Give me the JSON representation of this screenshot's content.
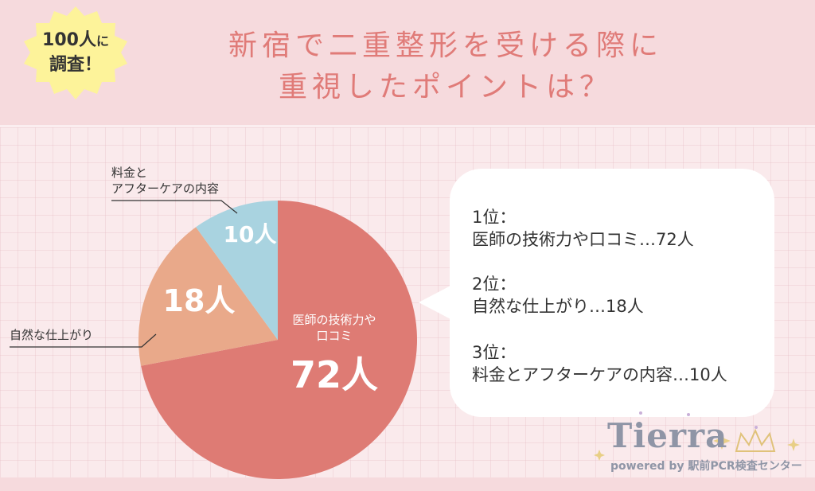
{
  "header": {
    "title_line1": "新宿で二重整形を受ける際に",
    "title_line2": "重視したポイントは？",
    "badge_line1_num": "100人",
    "badge_line1_small": "に",
    "badge_line2": "調査！"
  },
  "chart_data": {
    "type": "pie",
    "title": "",
    "slices": [
      {
        "label": "医師の技術力や口コミ",
        "label_line1": "医師の技術力や",
        "label_line2": "口コミ",
        "value": 72,
        "value_label": "72人",
        "color": "#de7b74"
      },
      {
        "label": "自然な仕上がり",
        "value": 18,
        "value_label": "18人",
        "color": "#e9a98a"
      },
      {
        "label": "料金とアフターケアの内容",
        "label_line1": "料金と",
        "label_line2": "アフターケアの内容",
        "value": 10,
        "value_label": "10人",
        "color": "#a9d3e0"
      }
    ]
  },
  "ranking": [
    {
      "rank": "1位：",
      "text": "医師の技術力や口コミ…72人"
    },
    {
      "rank": "2位：",
      "text": "自然な仕上がり…18人"
    },
    {
      "rank": "3位：",
      "text": "料金とアフターケアの内容…10人"
    }
  ],
  "logo": {
    "word": "Tierra",
    "sub": "powered by 駅前PCR検査センター"
  }
}
